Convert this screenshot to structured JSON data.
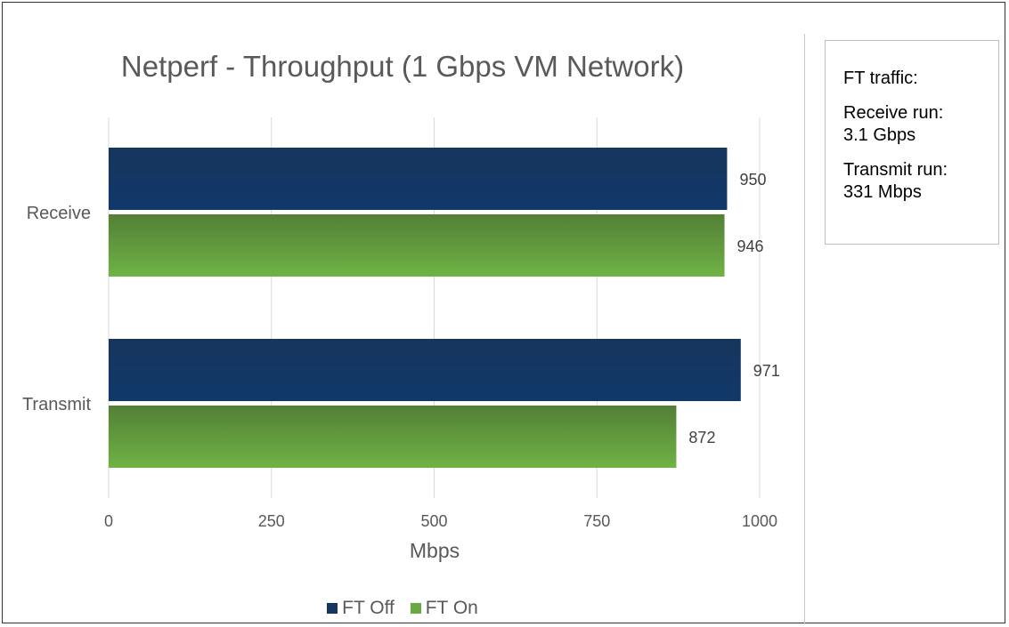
{
  "chart_data": {
    "type": "bar",
    "orientation": "horizontal",
    "title": "Netperf - Throughput (1 Gbps VM Network)",
    "xlabel": "Mbps",
    "ylabel": "",
    "categories": [
      "Receive",
      "Transmit"
    ],
    "series": [
      {
        "name": "FT Off",
        "values": [
          950,
          971
        ],
        "color": "#17365d"
      },
      {
        "name": "FT On",
        "values": [
          946,
          872
        ],
        "color": "#6aa843"
      }
    ],
    "xlim": [
      0,
      1000
    ],
    "xticks": [
      "0",
      "250",
      "500",
      "750",
      "1000"
    ],
    "grid": true,
    "legend": "bottom",
    "data_labels": true
  },
  "side_note": {
    "heading": "FT traffic:",
    "line1": "Receive run:",
    "line2": "3.1 Gbps",
    "line3": "Transmit run:",
    "line4": "331 Mbps"
  }
}
